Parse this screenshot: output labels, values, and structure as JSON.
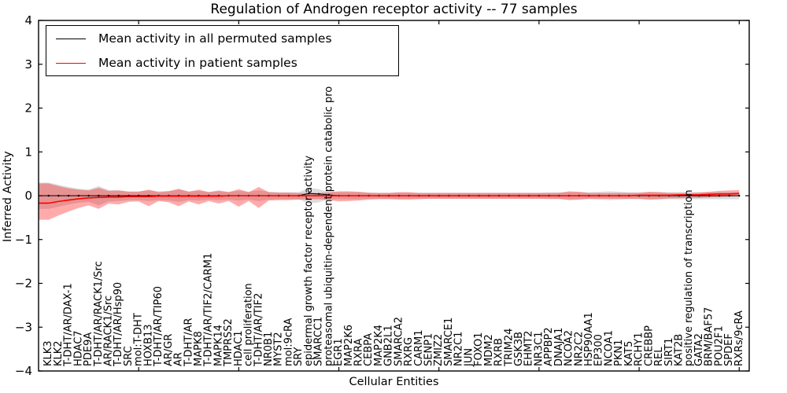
{
  "title": "Regulation of Androgen receptor activity -- 77 samples",
  "legend": {
    "items": [
      {
        "label": "Mean activity in all permuted samples",
        "color": "#000000",
        "line_width": 1.2
      },
      {
        "label": "Mean activity in patient samples",
        "color": "#ff0000",
        "line_width": 1.6
      }
    ]
  },
  "axes": {
    "xlabel": "Cellular Entities",
    "ylabel": "Inferred Activity",
    "ytick_labels": [
      "4",
      "3",
      "2",
      "1",
      "0",
      "−1",
      "−2",
      "−3",
      "−4"
    ],
    "ytick_values": [
      4,
      3,
      2,
      1,
      0,
      -1,
      -2,
      -3,
      -4
    ]
  },
  "colors": {
    "frame": "#000000",
    "background": "#ffffff",
    "permuted_line": "#000000",
    "patient_line": "#ff0000",
    "permuted_band": "#808080",
    "patient_band": "#ff0000"
  },
  "chart_data": {
    "type": "line",
    "title": "Regulation of Androgen receptor activity -- 77 samples",
    "xlabel": "Cellular Entities",
    "ylabel": "Inferred Activity",
    "ylim": [
      -4,
      4
    ],
    "grid": false,
    "legend_position": "upper left",
    "categories": [
      "KLK3",
      "KLK2",
      "T-DHT/AR/DAX-1",
      "HDAC7",
      "PDE9A",
      "T-DHT/AR/RACK1/Src",
      "AR/RACK1/Src",
      "T-DHT/AR/Hsp90",
      "SRC",
      "mol:T-DHT",
      "HOXB13",
      "T-DHT/AR/TIP60",
      "AR/GR",
      "AR",
      "T-DHT/AR",
      "MAPK8",
      "T-DHT/AR/TIF2/CARM1",
      "MAPK14",
      "TMPRSS2",
      "HDAC1",
      "cell proliferation",
      "T-DHT/AR/TIF2",
      "NR0B1",
      "MYST2",
      "mol:9cRA",
      "SRY",
      "epidermal growth factor receptor activity",
      "SMARCC1",
      "proteasomal ubiquitin-dependent protein catabolic pro",
      "EGR1",
      "MAP2K6",
      "RXRA",
      "CEBPA",
      "MAP2K4",
      "GNB2L1",
      "SMARCA2",
      "RXRG",
      "CARM1",
      "SENP1",
      "ZMIZ2",
      "SMARCE1",
      "NR2C1",
      "JUN",
      "FOXO1",
      "MDM2",
      "RXRB",
      "TRIM24",
      "GSK3B",
      "EHMT2",
      "NR3C1",
      "APPBP2",
      "DNAJA1",
      "NCOA2",
      "NR2C2",
      "HSP90AA1",
      "EP300",
      "NCOA1",
      "PKN1",
      "KAT5",
      "RCHY1",
      "CREBBP",
      "REL",
      "SIRT1",
      "KAT2B",
      "positive regulation of transcription",
      "GATA2",
      "BRM/BAF57",
      "POU2F1",
      "SPDEF",
      "RXRs/9cRA"
    ],
    "series": [
      {
        "name": "Mean activity in all permuted samples",
        "kind": "line",
        "color": "#000000",
        "width": 1.1,
        "marker": "dot",
        "values": [
          0,
          0,
          0,
          0,
          0,
          0,
          0,
          0,
          0,
          0,
          0,
          0,
          0,
          0,
          0,
          0,
          0,
          0,
          0,
          0,
          0,
          0,
          0,
          0,
          0,
          0,
          0.05,
          0.04,
          0.02,
          0,
          0,
          0,
          0,
          0,
          0,
          0,
          0,
          0,
          0,
          0,
          0,
          0,
          0,
          0,
          0,
          0,
          0,
          0,
          0,
          0,
          0,
          0,
          0,
          0,
          0,
          0,
          0,
          0,
          0,
          0,
          0,
          0,
          0,
          0,
          0,
          0,
          0,
          0,
          0,
          0
        ]
      },
      {
        "name": "Mean activity in patient samples",
        "kind": "line",
        "color": "#ff0000",
        "width": 1.6,
        "marker": "none",
        "values": [
          -0.17,
          -0.13,
          -0.1,
          -0.07,
          -0.05,
          -0.04,
          -0.03,
          -0.03,
          -0.02,
          -0.02,
          -0.02,
          -0.01,
          -0.01,
          -0.01,
          -0.01,
          -0.01,
          -0.01,
          -0.01,
          0,
          0,
          0,
          0,
          0,
          0,
          0,
          0,
          0,
          0,
          0,
          0,
          0,
          0,
          0,
          0,
          0,
          0,
          0,
          0,
          0,
          0,
          0,
          0,
          0,
          0,
          0,
          0,
          0,
          0,
          0,
          0,
          0,
          0,
          0,
          0,
          0,
          0,
          0,
          0,
          0,
          0.01,
          0.01,
          0.01,
          0.01,
          0.02,
          0.02,
          0.02,
          0.03,
          0.04,
          0.04,
          0.05
        ]
      },
      {
        "name": "permuted-band",
        "kind": "band",
        "color": "#808080",
        "opacity": 0.28,
        "upper": [
          0.3,
          0.25,
          0.2,
          0.16,
          0.14,
          0.22,
          0.13,
          0.12,
          0.1,
          0.1,
          0.12,
          0.1,
          0.11,
          0.14,
          0.1,
          0.11,
          0.09,
          0.1,
          0.09,
          0.11,
          0.09,
          0.12,
          0.09,
          0.08,
          0.08,
          0.08,
          0.18,
          0.15,
          0.08,
          0.08,
          0.08,
          0.08,
          0.07,
          0.07,
          0.07,
          0.07,
          0.07,
          0.07,
          0.07,
          0.07,
          0.07,
          0.07,
          0.07,
          0.07,
          0.07,
          0.07,
          0.07,
          0.07,
          0.07,
          0.07,
          0.08,
          0.08,
          0.08,
          0.08,
          0.08,
          0.09,
          0.1,
          0.09,
          0.08,
          0.08,
          0.08,
          0.08,
          0.08,
          0.08,
          0.08,
          0.08,
          0.08,
          0.08,
          0.08,
          0.08
        ],
        "lower": [
          -0.3,
          -0.25,
          -0.2,
          -0.16,
          -0.14,
          -0.22,
          -0.13,
          -0.12,
          -0.1,
          -0.1,
          -0.12,
          -0.1,
          -0.11,
          -0.14,
          -0.1,
          -0.11,
          -0.09,
          -0.1,
          -0.09,
          -0.11,
          -0.09,
          -0.12,
          -0.09,
          -0.08,
          -0.08,
          -0.08,
          -0.18,
          -0.15,
          -0.08,
          -0.08,
          -0.08,
          -0.08,
          -0.07,
          -0.07,
          -0.07,
          -0.07,
          -0.07,
          -0.07,
          -0.07,
          -0.07,
          -0.07,
          -0.07,
          -0.07,
          -0.07,
          -0.07,
          -0.07,
          -0.07,
          -0.07,
          -0.07,
          -0.07,
          -0.08,
          -0.08,
          -0.08,
          -0.08,
          -0.08,
          -0.09,
          -0.1,
          -0.09,
          -0.08,
          -0.08,
          -0.08,
          -0.08,
          -0.08,
          -0.08,
          -0.08,
          -0.08,
          -0.08,
          -0.08,
          -0.08,
          -0.08
        ]
      },
      {
        "name": "patient-band",
        "kind": "band",
        "color": "#ff0000",
        "opacity": 0.33,
        "upper": [
          0.28,
          0.22,
          0.17,
          0.14,
          0.12,
          0.18,
          0.11,
          0.12,
          0.09,
          0.09,
          0.14,
          0.08,
          0.1,
          0.16,
          0.09,
          0.14,
          0.08,
          0.12,
          0.08,
          0.15,
          0.08,
          0.2,
          0.08,
          0.07,
          0.07,
          0.06,
          0.06,
          0.06,
          0.08,
          0.1,
          0.1,
          0.09,
          0.07,
          0.06,
          0.06,
          0.08,
          0.08,
          0.06,
          0.06,
          0.06,
          0.06,
          0.06,
          0.06,
          0.06,
          0.06,
          0.06,
          0.06,
          0.06,
          0.06,
          0.06,
          0.06,
          0.06,
          0.1,
          0.09,
          0.06,
          0.06,
          0.06,
          0.06,
          0.06,
          0.06,
          0.09,
          0.08,
          0.06,
          0.06,
          0.06,
          0.07,
          0.09,
          0.11,
          0.12,
          0.13
        ],
        "lower": [
          -0.55,
          -0.45,
          -0.36,
          -0.28,
          -0.22,
          -0.3,
          -0.18,
          -0.2,
          -0.14,
          -0.13,
          -0.24,
          -0.12,
          -0.15,
          -0.24,
          -0.13,
          -0.2,
          -0.12,
          -0.18,
          -0.12,
          -0.25,
          -0.12,
          -0.28,
          -0.11,
          -0.1,
          -0.1,
          -0.09,
          -0.08,
          -0.08,
          -0.1,
          -0.13,
          -0.12,
          -0.11,
          -0.09,
          -0.08,
          -0.08,
          -0.09,
          -0.09,
          -0.08,
          -0.07,
          -0.07,
          -0.07,
          -0.07,
          -0.07,
          -0.07,
          -0.07,
          -0.07,
          -0.07,
          -0.07,
          -0.07,
          -0.07,
          -0.07,
          -0.07,
          -0.1,
          -0.09,
          -0.07,
          -0.07,
          -0.07,
          -0.07,
          -0.07,
          -0.07,
          -0.09,
          -0.08,
          -0.06,
          -0.06,
          -0.05,
          -0.05,
          -0.04,
          -0.03,
          -0.02,
          -0.01
        ]
      }
    ]
  }
}
